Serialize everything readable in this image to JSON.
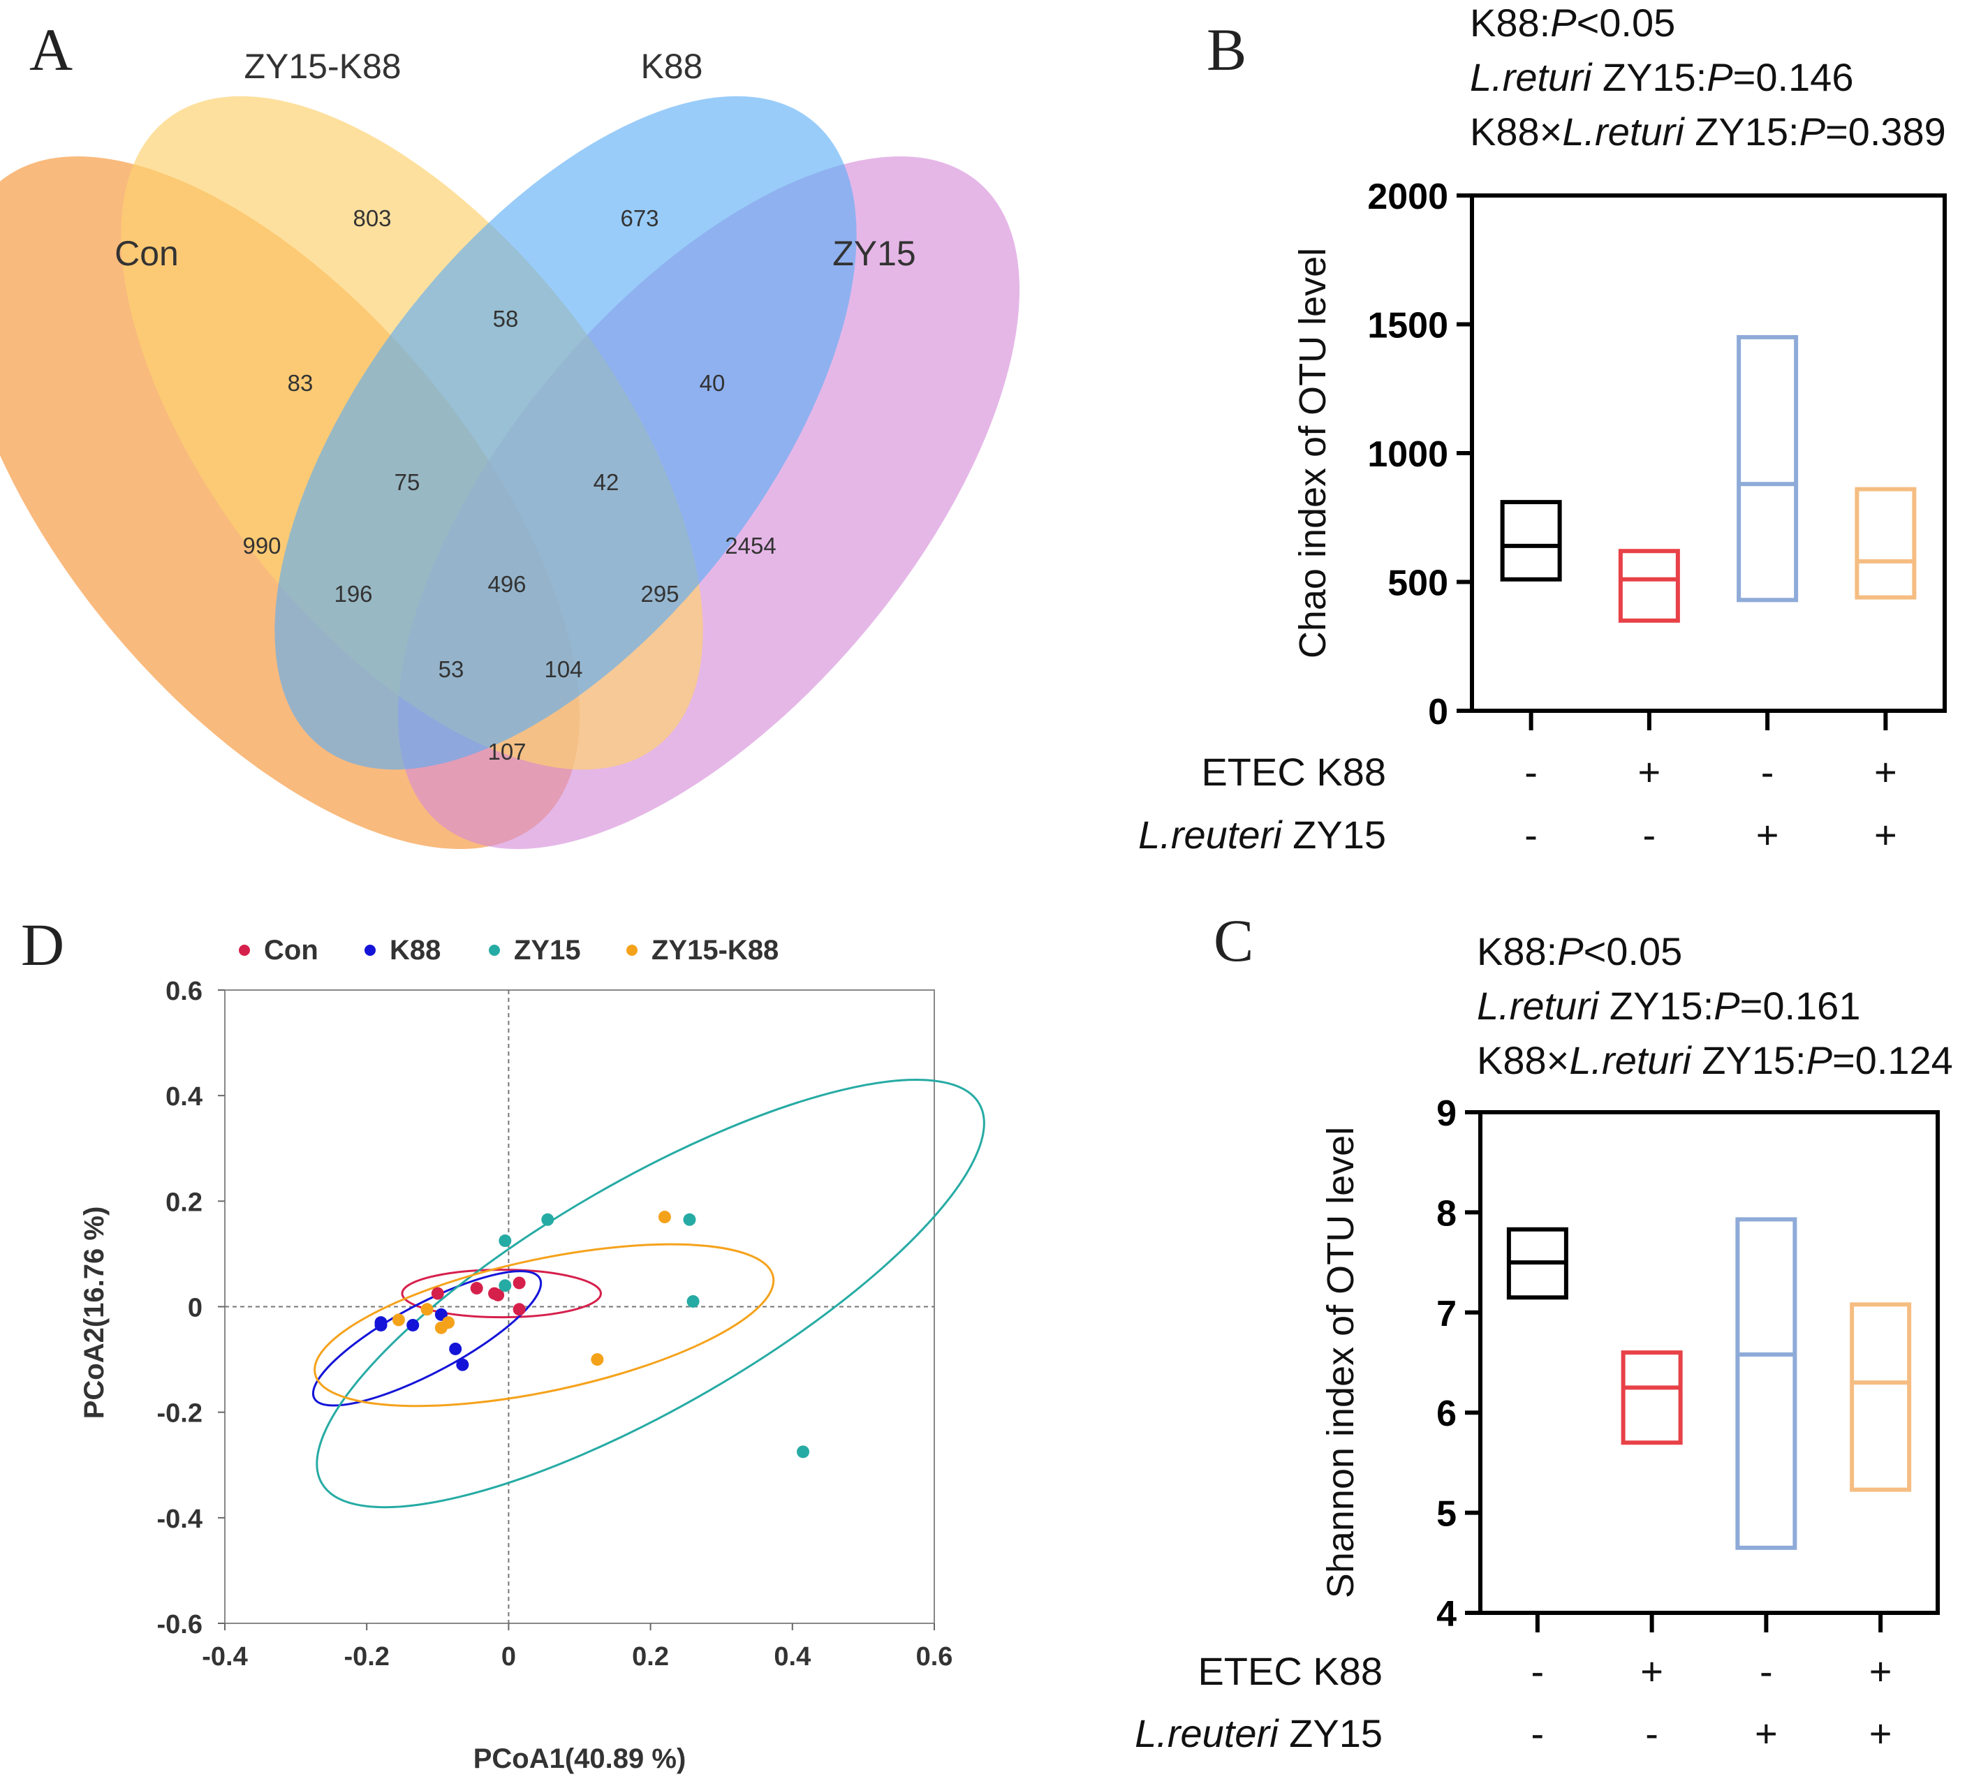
{
  "chart_data": [
    {
      "panel": "A",
      "type": "venn",
      "sets": [
        {
          "name": "Con",
          "color": "#f7a04b"
        },
        {
          "name": "ZY15-K88",
          "color": "#fdd270"
        },
        {
          "name": "K88",
          "color": "#5aacf6"
        },
        {
          "name": "ZY15",
          "color": "#d58ad9"
        }
      ],
      "regions": [
        {
          "label": "803",
          "sets": [
            "ZY15-K88"
          ]
        },
        {
          "label": "673",
          "sets": [
            "K88"
          ]
        },
        {
          "label": "58",
          "sets": [
            "ZY15-K88",
            "K88"
          ]
        },
        {
          "label": "83",
          "sets": [
            "Con",
            "ZY15-K88"
          ]
        },
        {
          "label": "40",
          "sets": [
            "K88",
            "ZY15"
          ]
        },
        {
          "label": "75",
          "sets": [
            "Con",
            "ZY15-K88",
            "K88"
          ]
        },
        {
          "label": "42",
          "sets": [
            "ZY15-K88",
            "K88",
            "ZY15"
          ]
        },
        {
          "label": "990",
          "sets": [
            "Con"
          ]
        },
        {
          "label": "2454",
          "sets": [
            "ZY15"
          ]
        },
        {
          "label": "196",
          "sets": [
            "Con",
            "K88"
          ]
        },
        {
          "label": "496",
          "sets": [
            "Con",
            "ZY15-K88",
            "K88",
            "ZY15"
          ]
        },
        {
          "label": "295",
          "sets": [
            "ZY15-K88",
            "ZY15"
          ]
        },
        {
          "label": "53",
          "sets": [
            "Con",
            "K88",
            "ZY15"
          ]
        },
        {
          "label": "104",
          "sets": [
            "Con",
            "ZY15-K88",
            "ZY15"
          ]
        },
        {
          "label": "107",
          "sets": [
            "Con",
            "ZY15"
          ]
        }
      ]
    },
    {
      "panel": "B",
      "type": "box",
      "stats": [
        "K88:",
        "P",
        "<0.05"
      ],
      "stats2": [
        "L.returi",
        " ZY15:",
        "P",
        "=0.146"
      ],
      "stats3": [
        "K88×",
        "L.returi",
        " ZY15:",
        "P",
        "=0.389"
      ],
      "ylabel": "Chao index of OTU level",
      "ylim": [
        0,
        2000
      ],
      "yticks": [
        0,
        500,
        1000,
        1500,
        2000
      ],
      "boxes": [
        {
          "min": 510,
          "median": 640,
          "max": 810,
          "color": "#000000"
        },
        {
          "min": 350,
          "median": 510,
          "max": 620,
          "color": "#e84148"
        },
        {
          "min": 430,
          "median": 880,
          "max": 1450,
          "color": "#8eaad8"
        },
        {
          "min": 440,
          "median": 580,
          "max": 860,
          "color": "#f5bd82"
        }
      ],
      "row1_label": "ETEC K88",
      "row1": [
        "-",
        "+",
        "-",
        "+"
      ],
      "row2_label": [
        "L.reuteri",
        " ZY15"
      ],
      "row2": [
        "-",
        "-",
        "+",
        "+"
      ]
    },
    {
      "panel": "C",
      "type": "box",
      "stats": [
        "K88:",
        "P",
        "<0.05"
      ],
      "stats2": [
        "L.returi",
        " ZY15:",
        "P",
        "=0.161"
      ],
      "stats3": [
        "K88×",
        "L.returi",
        " ZY15:",
        "P",
        "=0.124"
      ],
      "ylabel": "Shannon index of OTU level",
      "ylim": [
        4,
        9
      ],
      "yticks": [
        4,
        5,
        6,
        7,
        8,
        9
      ],
      "boxes": [
        {
          "min": 7.15,
          "median": 7.5,
          "max": 7.83,
          "color": "#000000"
        },
        {
          "min": 5.7,
          "median": 6.25,
          "max": 6.6,
          "color": "#e84148"
        },
        {
          "min": 4.65,
          "median": 6.58,
          "max": 7.93,
          "color": "#8eaad8"
        },
        {
          "min": 5.23,
          "median": 6.3,
          "max": 7.08,
          "color": "#f5bd82"
        }
      ],
      "row1_label": "ETEC K88",
      "row1": [
        "-",
        "+",
        "-",
        "+"
      ],
      "row2_label": [
        "L.reuteri",
        " ZY15"
      ],
      "row2": [
        "-",
        "-",
        "+",
        "+"
      ]
    },
    {
      "panel": "D",
      "type": "scatter",
      "xlabel": "PCoA1(40.89 %)",
      "ylabel": "PCoA2(16.76 %)",
      "xlim": [
        -0.4,
        0.6
      ],
      "ylim": [
        -0.6,
        0.6
      ],
      "xticks": [
        "-0.4",
        "-0.2",
        "0",
        "0.2",
        "0.4",
        "0.6"
      ],
      "yticks": [
        "0.6",
        "0.4",
        "0.2",
        "0",
        "-0.2",
        "-0.4",
        "-0.6"
      ],
      "yticks_values": [
        0.6,
        0.4,
        0.2,
        0,
        -0.2,
        -0.4,
        -0.6
      ],
      "xticks_values": [
        -0.4,
        -0.2,
        0,
        0.2,
        0.4,
        0.6
      ],
      "series": [
        {
          "name": "Con",
          "color": "#d6204c",
          "points": [
            [
              -0.1,
              0.025
            ],
            [
              -0.045,
              0.035
            ],
            [
              -0.02,
              0.025
            ],
            [
              -0.015,
              0.022
            ],
            [
              0.015,
              0.045
            ],
            [
              0.015,
              -0.005
            ]
          ],
          "ellipse": {
            "cx": -0.01,
            "cy": 0.025,
            "rx": 0.14,
            "ry": 0.045,
            "angle": 0
          }
        },
        {
          "name": "K88",
          "color": "#1414d8",
          "points": [
            [
              -0.18,
              -0.03
            ],
            [
              -0.18,
              -0.035
            ],
            [
              -0.135,
              -0.035
            ],
            [
              -0.095,
              -0.015
            ],
            [
              -0.075,
              -0.08
            ],
            [
              -0.065,
              -0.11
            ]
          ],
          "ellipse": {
            "cx": -0.115,
            "cy": -0.06,
            "rx": 0.18,
            "ry": 0.065,
            "angle": -28
          }
        },
        {
          "name": "ZY15",
          "color": "#26aba4",
          "points": [
            [
              -0.005,
              0.125
            ],
            [
              -0.005,
              0.04
            ],
            [
              0.055,
              0.165
            ],
            [
              0.255,
              0.165
            ],
            [
              0.26,
              0.01
            ],
            [
              0.415,
              -0.275
            ]
          ],
          "ellipse": {
            "cx": 0.2,
            "cy": 0.025,
            "rx": 0.535,
            "ry": 0.215,
            "angle": -30
          }
        },
        {
          "name": "ZY15-K88",
          "color": "#f5a21b",
          "points": [
            [
              -0.155,
              -0.025
            ],
            [
              -0.115,
              -0.005
            ],
            [
              -0.095,
              -0.04
            ],
            [
              -0.085,
              -0.03
            ],
            [
              0.125,
              -0.1
            ],
            [
              0.22,
              0.17
            ]
          ],
          "ellipse": {
            "cx": 0.05,
            "cy": -0.035,
            "rx": 0.33,
            "ry": 0.125,
            "angle": -12
          }
        }
      ]
    }
  ],
  "panels": {
    "a": "A",
    "b": "B",
    "c": "C",
    "d": "D"
  }
}
